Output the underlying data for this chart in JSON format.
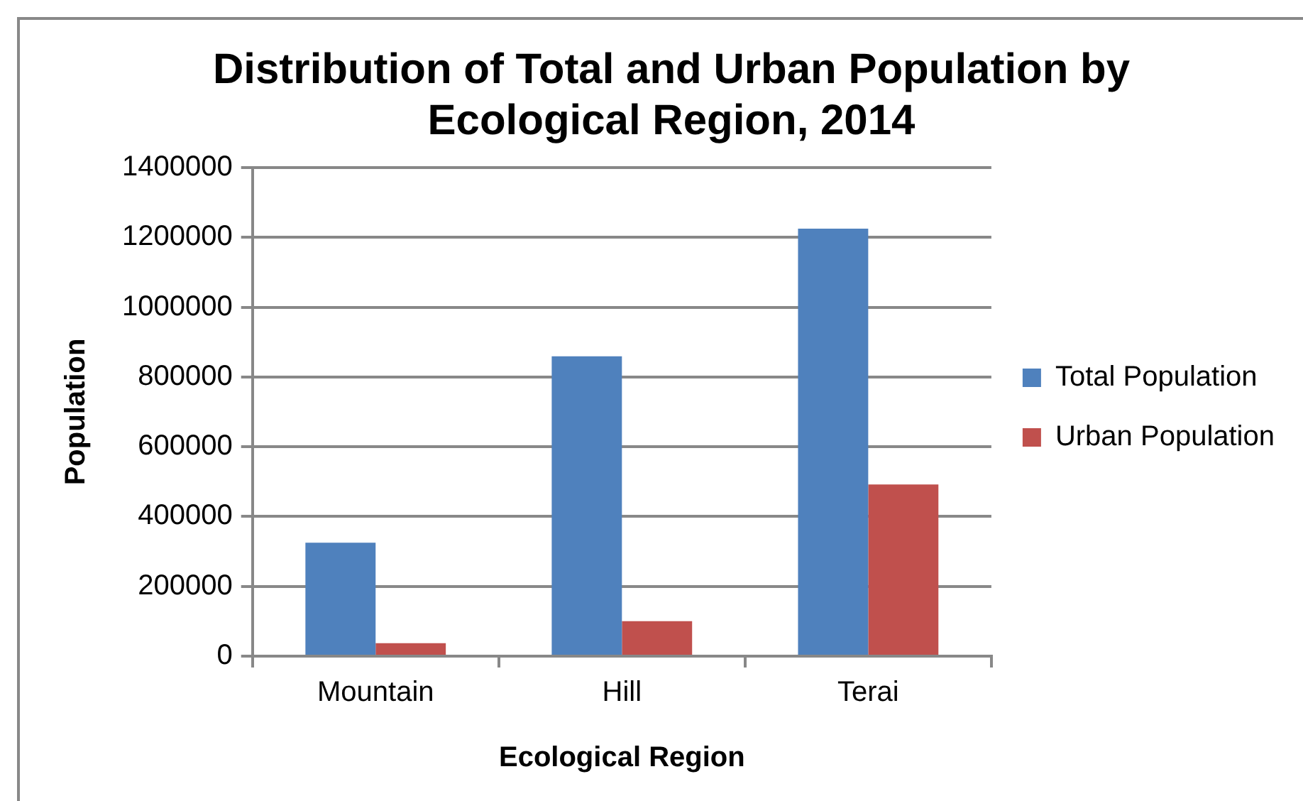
{
  "chart_data": {
    "type": "bar",
    "title": "Distribution of Total and Urban Population by Ecological Region, 2014",
    "xlabel": "Ecological Region",
    "ylabel": "Population",
    "categories": [
      "Mountain",
      "Hill",
      "Terai"
    ],
    "series": [
      {
        "name": "Total Population",
        "color": "#4f81bd",
        "values": [
          325000,
          859000,
          1225000
        ]
      },
      {
        "name": "Urban Population",
        "color": "#c0504d",
        "values": [
          37000,
          100000,
          492000
        ]
      }
    ],
    "ylim": [
      0,
      1400000
    ],
    "yticks": [
      0,
      200000,
      400000,
      600000,
      800000,
      1000000,
      1200000,
      1400000
    ],
    "grid": "y",
    "legend": "right"
  }
}
